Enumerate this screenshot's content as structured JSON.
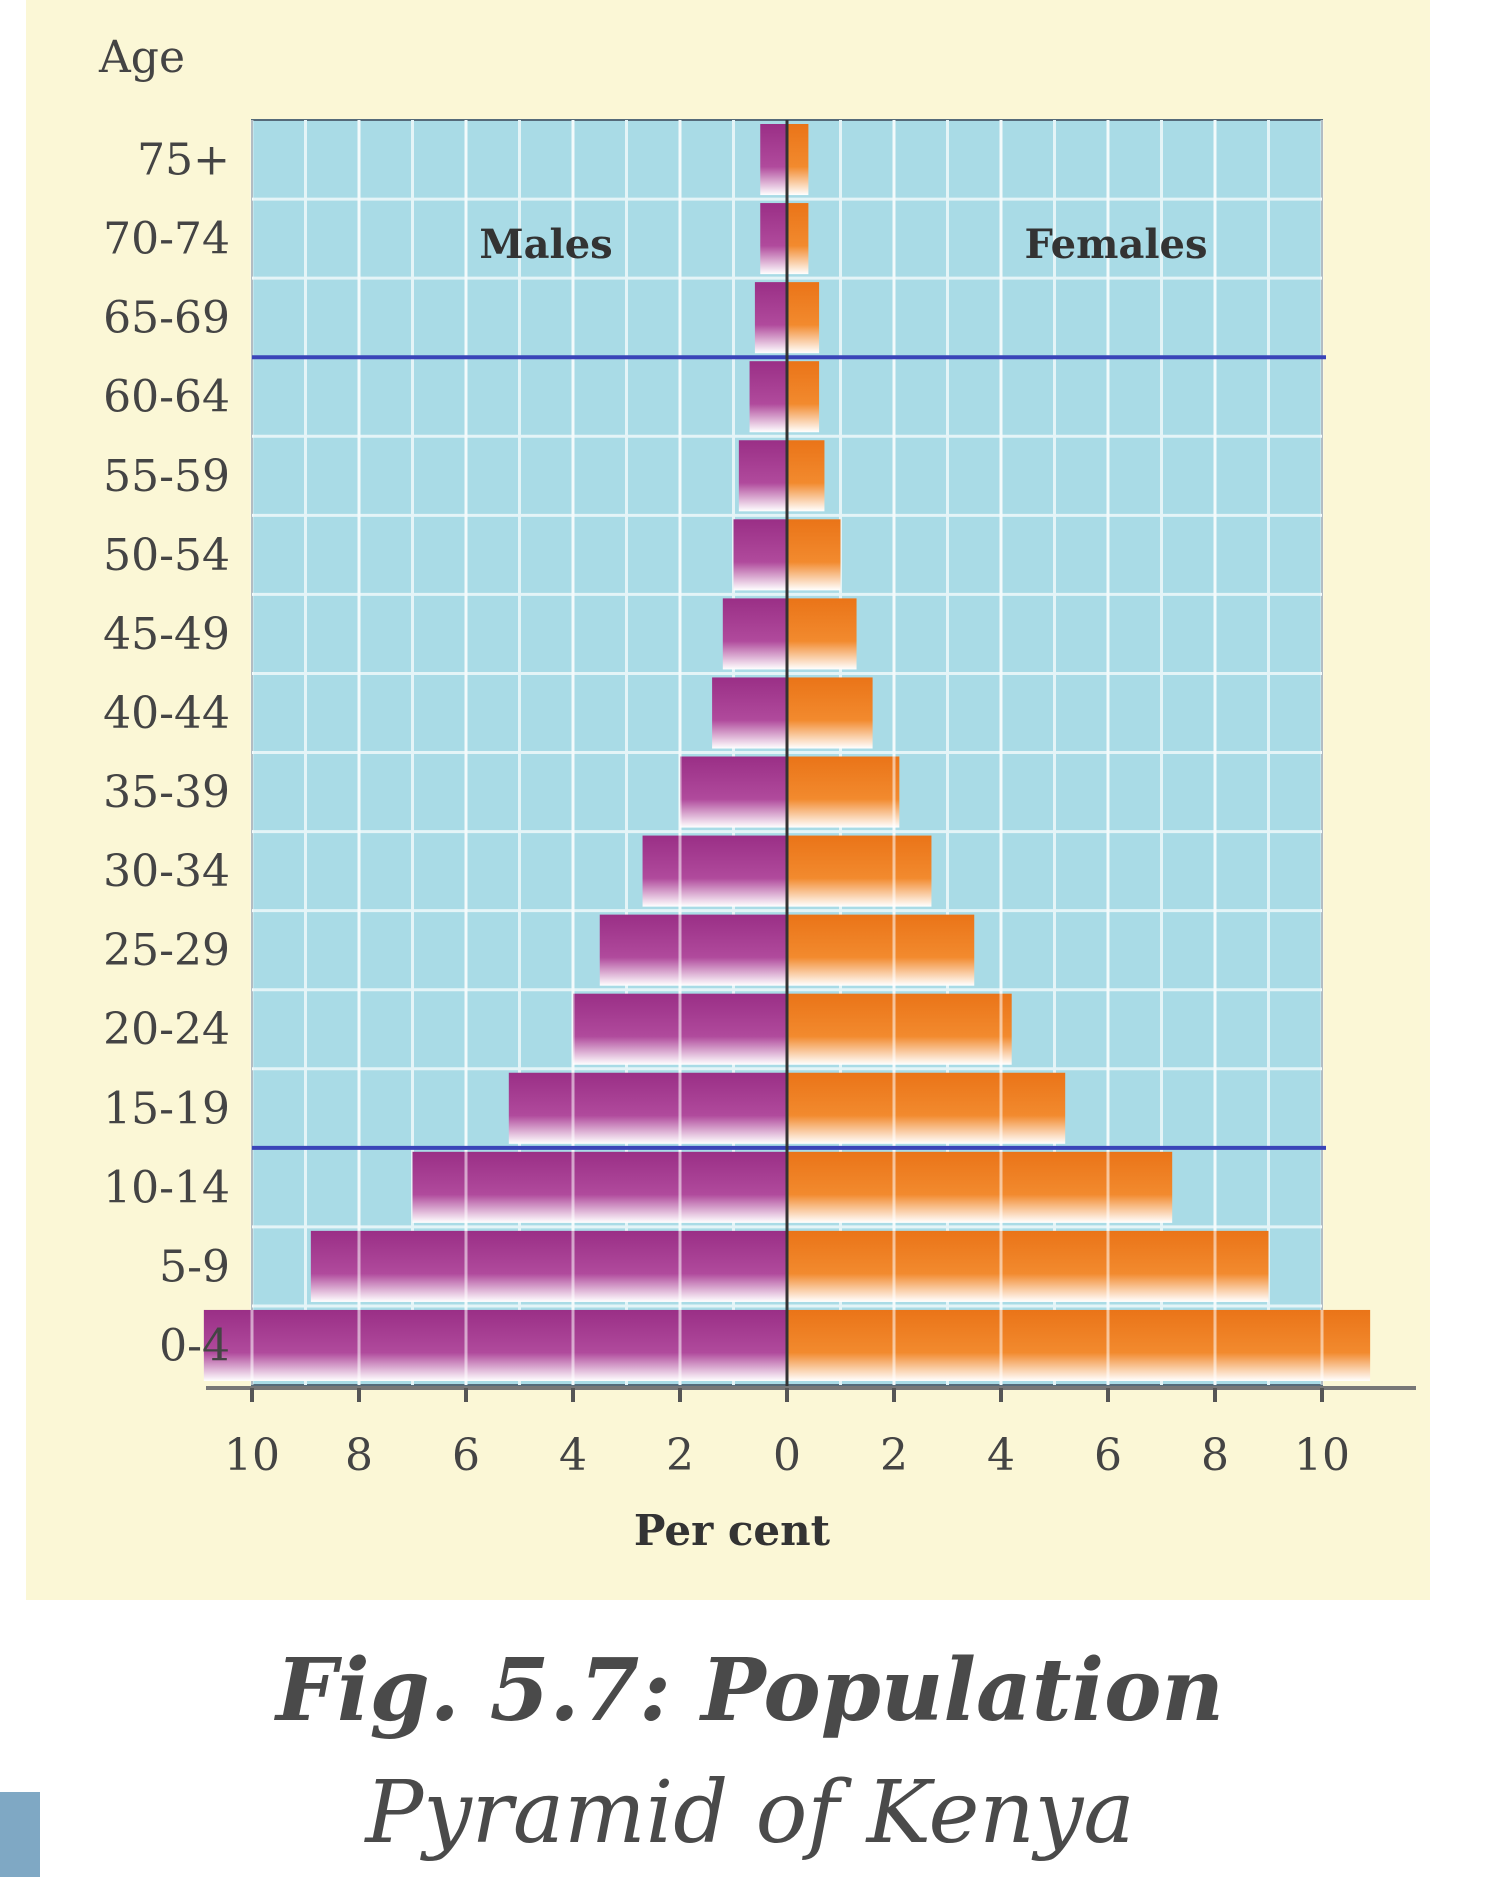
{
  "chart_data": {
    "type": "bar",
    "orientation": "horizontal",
    "layout": "population-pyramid",
    "y_axis_title": "Age",
    "xlabel": "Per cent",
    "categories": [
      "75+",
      "70-74",
      "65-69",
      "60-64",
      "55-59",
      "50-54",
      "45-49",
      "40-44",
      "35-39",
      "30-34",
      "25-29",
      "20-24",
      "15-19",
      "10-14",
      "5-9",
      "0-4"
    ],
    "series": [
      {
        "name": "Males",
        "side": "left",
        "color": "#b04a9c",
        "values": [
          0.5,
          0.5,
          0.6,
          0.7,
          0.9,
          1.0,
          1.2,
          1.4,
          2.0,
          2.7,
          3.5,
          4.0,
          5.2,
          7.0,
          8.9,
          10.9
        ]
      },
      {
        "name": "Females",
        "side": "right",
        "color": "#f28a2e",
        "values": [
          0.4,
          0.4,
          0.6,
          0.6,
          0.7,
          1.0,
          1.3,
          1.6,
          2.1,
          2.7,
          3.5,
          4.2,
          5.2,
          7.2,
          9.0,
          10.9
        ]
      }
    ],
    "x_ticks": [
      "10",
      "8",
      "6",
      "4",
      "2",
      "0",
      "2",
      "4",
      "6",
      "8",
      "10"
    ],
    "xlim": [
      -10,
      10
    ],
    "reference_lines_after_category": [
      "65-69",
      "15-19"
    ],
    "grid": true,
    "colors": {
      "panel_background": "#fbf7d6",
      "plot_background": "#a9dbe6",
      "grid": "#e4f4f7",
      "reference_line": "#3a44b8",
      "axis": "#333333"
    }
  },
  "caption": {
    "line1": "Fig. 5.7: Population",
    "line2": "Pyramid of Kenya"
  }
}
